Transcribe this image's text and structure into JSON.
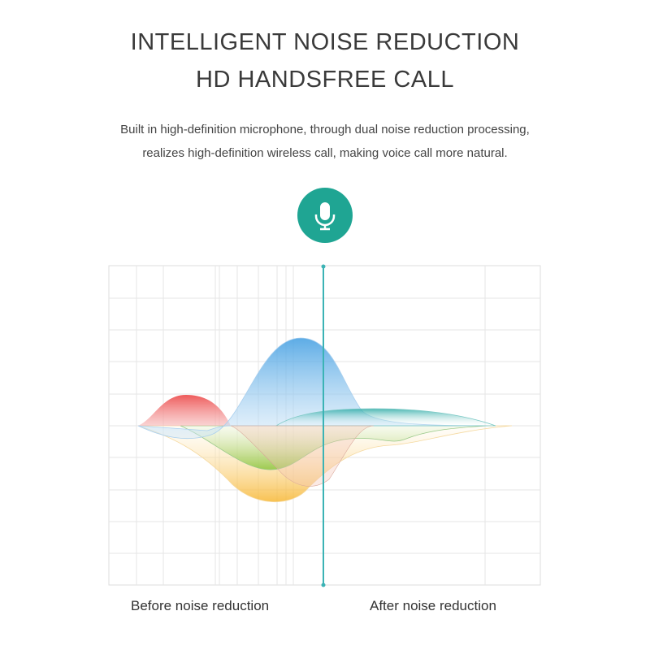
{
  "heading": {
    "line1": "INTELLIGENT NOISE REDUCTION",
    "line2": "HD HANDSFREE CALL"
  },
  "description": {
    "line1": "Built in high-definition microphone, through dual noise reduction processing,",
    "line2": "realizes high-definition wireless call, making voice call more natural."
  },
  "icon": {
    "name": "microphone-icon",
    "color": "#1fa593"
  },
  "labels": {
    "before": "Before noise reduction",
    "after": "After noise reduction"
  },
  "colors": {
    "red": "#ee5a5a",
    "blue": "#4ba3e3",
    "teal": "#1fa5a0",
    "green": "#8cc63f",
    "yellow": "#f7b733",
    "divider": "#3bb3b5"
  }
}
